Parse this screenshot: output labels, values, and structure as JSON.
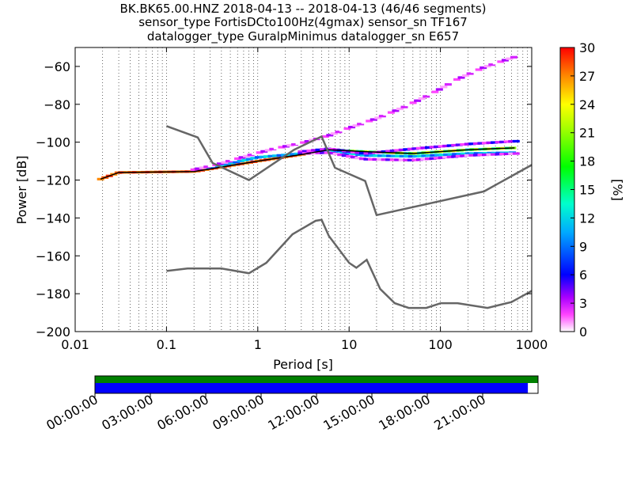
{
  "chart_data": {
    "type": "heatmap",
    "title_lines": [
      "BK.BK65.00.HNZ   2018-04-13 -- 2018-04-13  (46/46 segments)",
      "sensor_type FortisDCto100Hz(4gmax) sensor_sn TF167",
      "datalogger_type GuralpMinimus datalogger_sn E657"
    ],
    "xlabel": "Period [s]",
    "ylabel": "Power [dB]",
    "xscale": "log",
    "xlim": [
      0.01,
      1000
    ],
    "ylim": [
      -200,
      -50
    ],
    "x_tick_values": [
      0.01,
      0.1,
      1,
      10,
      100,
      1000
    ],
    "x_ticks": [
      "0.01",
      "0.1",
      "1",
      "10",
      "100",
      "1000"
    ],
    "y_tick_values": [
      -60,
      -80,
      -100,
      -120,
      -140,
      -160,
      -180,
      -200
    ],
    "y_ticks": [
      "−60",
      "−80",
      "−100",
      "−120",
      "−140",
      "−160",
      "−180",
      "−200"
    ],
    "grid": "dotted vertical",
    "colorbar": {
      "label": "[%]",
      "range": [
        0,
        30
      ],
      "tick_values": [
        0,
        3,
        6,
        9,
        12,
        15,
        18,
        21,
        24,
        27,
        30
      ],
      "ticks": [
        "0",
        "3",
        "6",
        "9",
        "12",
        "15",
        "18",
        "21",
        "24",
        "27",
        "30"
      ]
    },
    "reference_curves": [
      {
        "period": [
          0.1,
          0.22,
          0.32,
          0.8,
          2.5,
          5,
          7,
          15,
          20,
          300,
          1000
        ],
        "power": [
          -91.5,
          -97.5,
          -111,
          -120,
          -104,
          -97,
          -113.5,
          -120.5,
          -138.5,
          -126,
          -112
        ]
      },
      {
        "period": [
          0.1,
          0.17,
          0.4,
          0.8,
          1.24,
          2.4,
          4.3,
          5,
          6,
          10,
          12,
          15.6,
          21.9,
          31.6,
          45,
          70,
          101,
          154,
          328,
          600,
          1000
        ],
        "power": [
          -168,
          -166.7,
          -166.7,
          -169.2,
          -163.7,
          -148.6,
          -141.5,
          -141,
          -149.5,
          -163.7,
          -166.3,
          -162.1,
          -177.5,
          -185,
          -187.5,
          -187.5,
          -185,
          -185,
          -187.5,
          -184.4,
          -178.5
        ]
      }
    ],
    "psd_bands": [
      {
        "period": [
          0.019,
          0.03,
          0.2,
          1,
          3,
          6,
          15,
          50,
          200,
          650
        ],
        "power": [
          -119.5,
          -116,
          -115.5,
          -110,
          -106.5,
          -104,
          -105,
          -106,
          -104,
          -103
        ]
      },
      {
        "period": [
          0.3,
          1,
          3,
          6,
          15,
          50,
          200,
          650
        ],
        "power": [
          -113.5,
          -108,
          -106,
          -104.5,
          -107,
          -107.5,
          -106,
          -105.5
        ],
        "percent": 10
      },
      {
        "period": [
          3,
          6,
          15,
          50,
          200,
          650
        ],
        "power": [
          -105,
          -103.5,
          -106,
          -103.5,
          -101,
          -99.5
        ],
        "percent": 4
      },
      {
        "period": [
          3,
          6,
          15,
          50,
          200,
          650
        ],
        "power": [
          -106,
          -105.5,
          -109,
          -109.5,
          -107,
          -106
        ],
        "percent": 3
      },
      {
        "period": [
          0.2,
          0.35,
          0.8,
          1.5,
          3,
          6,
          10,
          20,
          40,
          80,
          150,
          300,
          650
        ],
        "power": [
          -114.5,
          -112,
          -107,
          -103.5,
          -100.5,
          -96.5,
          -92.5,
          -87.5,
          -81.5,
          -74.5,
          -67,
          -60.5,
          -55
        ],
        "percent": 2
      }
    ],
    "availability_axis": {
      "ticks": [
        "00:00:00",
        "03:00:00",
        "06:00:00",
        "09:00:00",
        "12:00:00",
        "15:00:00",
        "18:00:00",
        "21:00:00"
      ],
      "data_fraction": 0.977,
      "gap_fraction": 1.0,
      "colors": {
        "data": "#0000ff",
        "gaps": "#008000"
      }
    }
  }
}
